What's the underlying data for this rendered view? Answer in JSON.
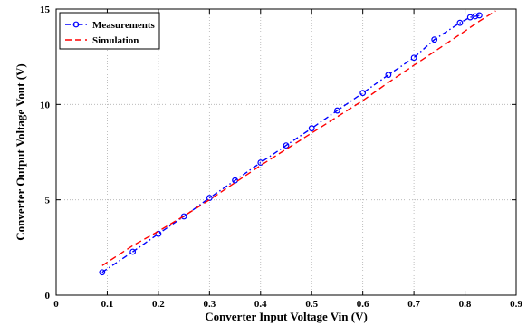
{
  "chart_data": {
    "type": "line",
    "xlabel": "Converter Input Voltage Vin (V)",
    "ylabel": "Converter Output Voltage Vout (V)",
    "xlim": [
      0,
      0.9
    ],
    "ylim": [
      0,
      15
    ],
    "xticks": [
      0,
      0.1,
      0.2,
      0.3,
      0.4,
      0.5,
      0.6,
      0.7,
      0.8,
      0.9
    ],
    "xtick_labels": [
      "0",
      "0.1",
      "0.2",
      "0.3",
      "0.4",
      "0.5",
      "0.6",
      "0.7",
      "0.8",
      "0.9"
    ],
    "yticks": [
      0,
      5,
      10,
      15
    ],
    "ytick_labels": [
      "0",
      "5",
      "10",
      "15"
    ],
    "grid": true,
    "legend_position": "top-left",
    "series": [
      {
        "name": "Measurements",
        "color": "#0000ff",
        "line_style": "dash-dot",
        "marker": "circle",
        "x": [
          0.09,
          0.15,
          0.2,
          0.25,
          0.3,
          0.35,
          0.4,
          0.45,
          0.5,
          0.55,
          0.6,
          0.65,
          0.7,
          0.74,
          0.79,
          0.81,
          0.82,
          0.828
        ],
        "y": [
          1.2,
          2.28,
          3.22,
          4.13,
          5.1,
          6.02,
          6.95,
          7.85,
          8.75,
          9.68,
          10.6,
          11.55,
          12.45,
          13.4,
          14.28,
          14.57,
          14.62,
          14.67
        ]
      },
      {
        "name": "Simulation",
        "color": "#ff0000",
        "line_style": "dashed",
        "marker": "none",
        "x": [
          0.09,
          0.15,
          0.2,
          0.25,
          0.3,
          0.35,
          0.4,
          0.45,
          0.5,
          0.55,
          0.6,
          0.65,
          0.7,
          0.75,
          0.8,
          0.83,
          0.86
        ],
        "y": [
          1.55,
          2.6,
          3.35,
          4.15,
          5.0,
          5.9,
          6.8,
          7.65,
          8.5,
          9.35,
          10.2,
          11.15,
          12.05,
          12.95,
          13.85,
          14.4,
          14.9
        ]
      }
    ]
  }
}
